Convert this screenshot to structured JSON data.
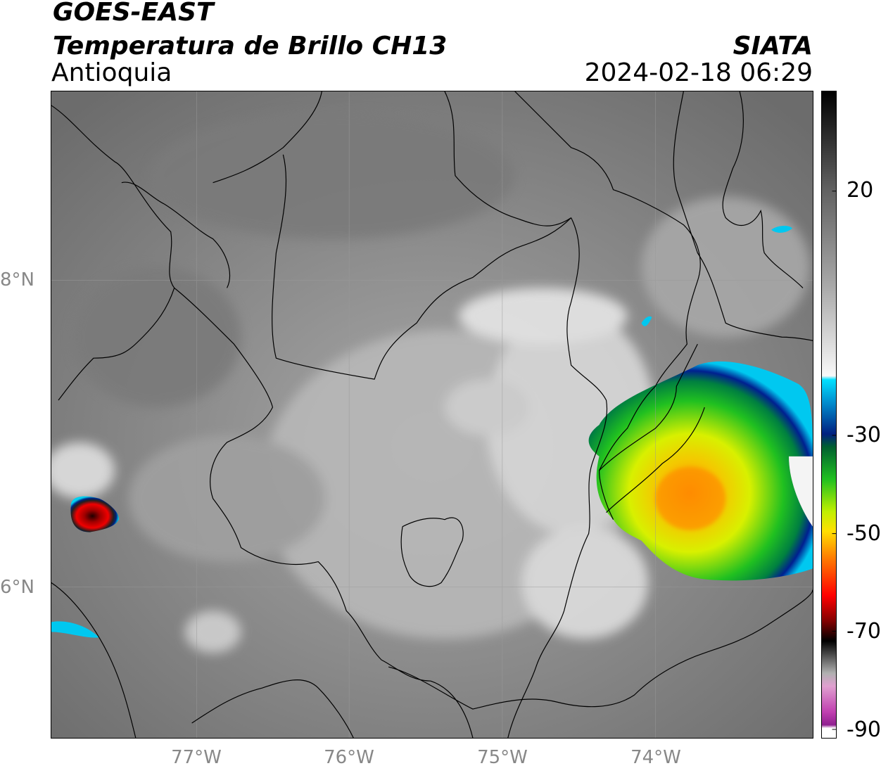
{
  "header": {
    "line1": "GOES-EAST",
    "line2": "Temperatura de Brillo CH13",
    "line3": "Antioquia",
    "org": "SIATA",
    "datetime": "2024-02-18 06:29"
  },
  "axes": {
    "lat_labels": [
      "8°N",
      "6°N"
    ],
    "lon_labels": [
      "77°W",
      "76°W",
      "75°W",
      "74°W"
    ]
  },
  "colorbar": {
    "ticks": [
      "20",
      "-30",
      "-50",
      "-70",
      "-90"
    ],
    "range": [
      -90,
      40
    ],
    "colors": {
      "magenta": "#a0309a",
      "pink": "#e070c0",
      "black": "#101010",
      "red": "#d01010",
      "orange": "#ff8000",
      "yellow": "#f0f000",
      "green": "#00c000",
      "darkblue": "#002080",
      "cyan": "#00d0f0",
      "gray_light": "#e8e8e8",
      "gray_dark": "#404040"
    }
  }
}
